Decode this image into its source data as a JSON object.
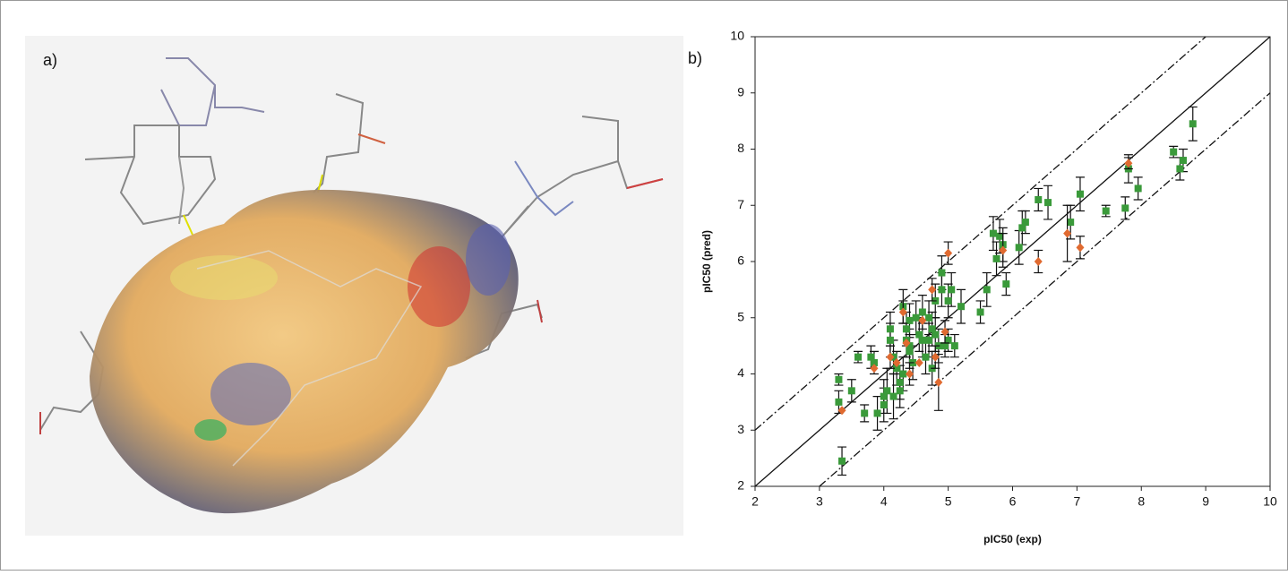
{
  "panel_a_label": "a)",
  "chart_data": {
    "type": "scatter",
    "panel_label": "b)",
    "x_label": "pIC50 (exp)",
    "y_label": "pIC50 (pred)",
    "xlim": [
      2,
      10
    ],
    "ylim": [
      2,
      10
    ],
    "xticks": [
      2,
      3,
      4,
      5,
      6,
      7,
      8,
      9,
      10
    ],
    "yticks": [
      2,
      3,
      4,
      5,
      6,
      7,
      8,
      9,
      10
    ],
    "grid": false,
    "ref_lines": [
      {
        "slope": 1,
        "intercept": 0,
        "dash": "solid"
      },
      {
        "slope": 1,
        "intercept": 1,
        "dash": "dash-dot"
      },
      {
        "slope": 1,
        "intercept": -1,
        "dash": "dash-dot"
      }
    ],
    "series": [
      {
        "color": "#3a9a3a",
        "marker": "square",
        "x": [
          3.3,
          3.3,
          3.35,
          3.5,
          3.6,
          3.7,
          3.8,
          3.85,
          3.9,
          4.0,
          4.0,
          4.05,
          4.1,
          4.1,
          4.15,
          4.15,
          4.2,
          4.25,
          4.25,
          4.3,
          4.3,
          4.35,
          4.35,
          4.4,
          4.4,
          4.4,
          4.45,
          4.5,
          4.55,
          4.6,
          4.6,
          4.65,
          4.7,
          4.7,
          4.75,
          4.75,
          4.8,
          4.8,
          4.85,
          4.9,
          4.9,
          4.95,
          5.0,
          5.0,
          5.05,
          5.1,
          5.2,
          5.5,
          5.6,
          5.7,
          5.75,
          5.8,
          5.85,
          5.9,
          6.1,
          6.15,
          6.2,
          6.4,
          6.55,
          6.9,
          7.05,
          7.45,
          7.75,
          7.8,
          7.95,
          8.5,
          8.6,
          8.65,
          8.8
        ],
        "values": [
          3.9,
          3.5,
          2.45,
          3.7,
          4.3,
          3.3,
          4.3,
          4.2,
          3.3,
          3.6,
          3.45,
          3.7,
          4.8,
          4.6,
          4.3,
          3.6,
          4.1,
          3.85,
          3.7,
          5.2,
          4.0,
          4.8,
          4.6,
          4.95,
          4.5,
          4.4,
          4.2,
          5.0,
          4.7,
          5.1,
          4.6,
          4.3,
          5.0,
          4.6,
          4.1,
          4.8,
          5.3,
          4.7,
          4.5,
          5.8,
          5.5,
          4.5,
          5.3,
          4.6,
          5.5,
          4.5,
          5.2,
          5.1,
          5.5,
          6.5,
          6.05,
          6.45,
          6.3,
          5.6,
          6.25,
          6.6,
          6.7,
          7.1,
          7.05,
          6.7,
          7.2,
          6.9,
          6.95,
          7.65,
          7.3,
          7.95,
          7.65,
          7.8,
          8.45
        ],
        "errors": [
          0.1,
          0.2,
          0.25,
          0.2,
          0.1,
          0.15,
          0.2,
          0.2,
          0.3,
          0.3,
          0.3,
          0.4,
          0.3,
          0.3,
          0.3,
          0.4,
          0.3,
          0.3,
          0.3,
          0.3,
          0.3,
          0.3,
          0.3,
          0.3,
          0.3,
          0.3,
          0.3,
          0.3,
          0.3,
          0.3,
          0.3,
          0.3,
          0.3,
          0.3,
          0.3,
          0.3,
          0.3,
          0.3,
          0.3,
          0.3,
          0.3,
          0.2,
          0.3,
          0.2,
          0.3,
          0.2,
          0.3,
          0.2,
          0.3,
          0.3,
          0.3,
          0.3,
          0.3,
          0.2,
          0.3,
          0.3,
          0.2,
          0.2,
          0.3,
          0.3,
          0.3,
          0.1,
          0.2,
          0.25,
          0.2,
          0.1,
          0.2,
          0.2,
          0.3
        ]
      },
      {
        "color": "#e06a30",
        "marker": "diamond",
        "x": [
          3.35,
          3.85,
          4.1,
          4.2,
          4.3,
          4.35,
          4.4,
          4.55,
          4.6,
          4.75,
          4.8,
          4.85,
          4.95,
          5.0,
          5.85,
          6.4,
          6.85,
          7.05,
          7.8
        ],
        "values": [
          3.35,
          4.1,
          4.3,
          4.2,
          5.1,
          4.55,
          4.0,
          4.2,
          4.95,
          5.5,
          4.3,
          3.85,
          4.75,
          6.15,
          6.2,
          6.0,
          6.5,
          6.25,
          7.75
        ],
        "errors": [
          null,
          null,
          0.2,
          null,
          0.2,
          null,
          0.2,
          null,
          null,
          0.2,
          0.2,
          0.5,
          0.2,
          0.2,
          0.3,
          0.2,
          0.5,
          0.2,
          0.1
        ]
      }
    ]
  }
}
